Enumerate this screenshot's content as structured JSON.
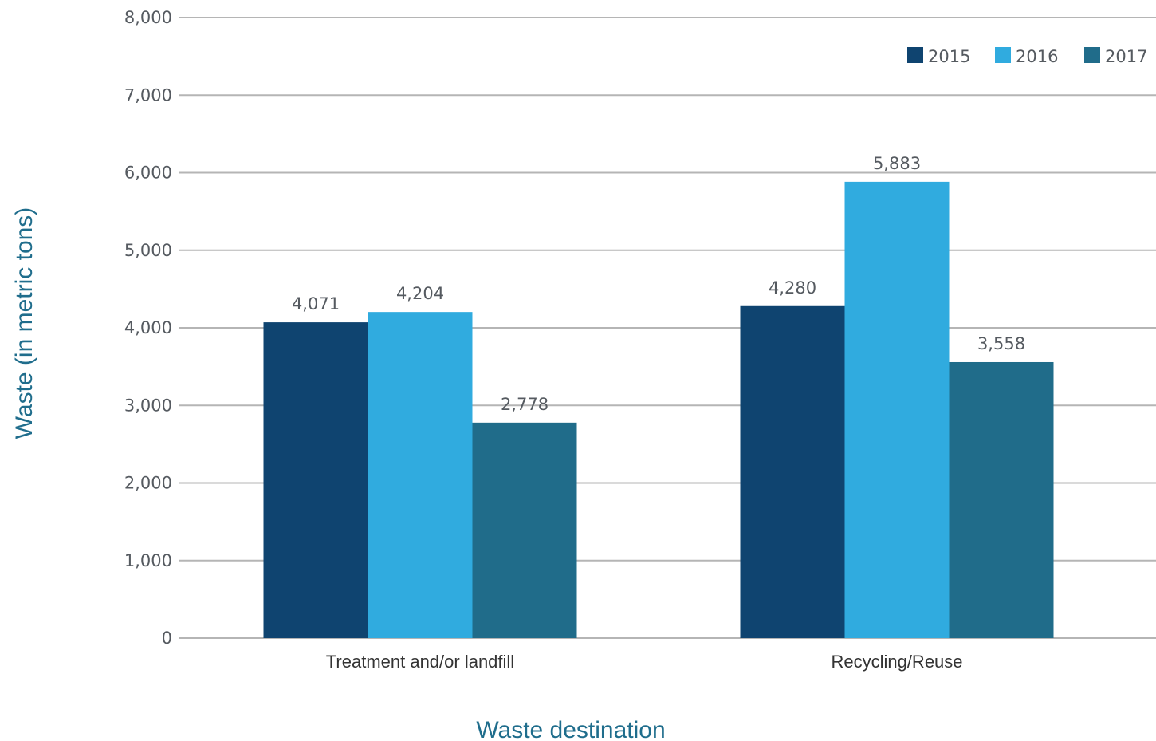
{
  "chart_data": {
    "type": "bar",
    "categories": [
      "Treatment and/or landfill",
      "Recycling/Reuse"
    ],
    "series": [
      {
        "name": "2015",
        "values": [
          4071,
          4280
        ],
        "color": "#0f4470"
      },
      {
        "name": "2016",
        "values": [
          4204,
          5883
        ],
        "color": "#30abdf"
      },
      {
        "name": "2017",
        "values": [
          2778,
          3558
        ],
        "color": "#206c8a"
      }
    ],
    "value_labels": [
      [
        "4,071",
        "4,280"
      ],
      [
        "4,204",
        "5,883"
      ],
      [
        "2,778",
        "3,558"
      ]
    ],
    "yticks": [
      0,
      1000,
      2000,
      3000,
      4000,
      5000,
      6000,
      7000,
      8000
    ],
    "ytick_labels": [
      "0",
      "1,000",
      "2,000",
      "3,000",
      "4,000",
      "5,000",
      "6,000",
      "7,000",
      "8,000"
    ],
    "ylim": [
      0,
      8000
    ],
    "xlabel": "Waste destination",
    "ylabel": "Waste (in metric tons)",
    "legend": "top-right",
    "grid": true,
    "title_color": "#1f6d8c"
  }
}
